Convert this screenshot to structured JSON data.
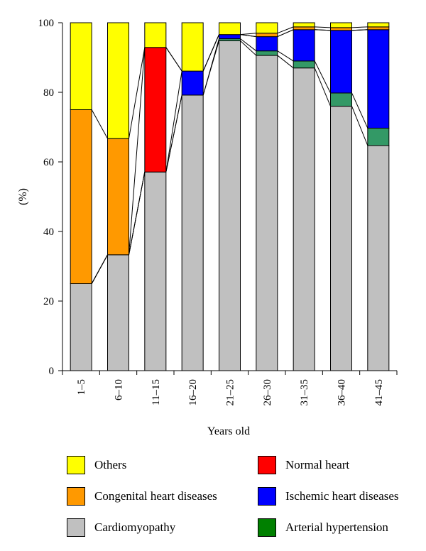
{
  "chart_data": {
    "type": "bar",
    "stacked": true,
    "categories": [
      "1–5",
      "6–10",
      "11–15",
      "16–20",
      "21–25",
      "26–30",
      "31–35",
      "36–40",
      "41–45"
    ],
    "xlabel": "Years old",
    "ylabel": "(%)",
    "ylim": [
      0,
      100
    ],
    "yticks": [
      0,
      20,
      40,
      60,
      80,
      100
    ],
    "connector_lines": true,
    "series": [
      {
        "name": "Cardiomyopathy",
        "color": "#c0c0c0",
        "values": [
          25,
          33.3,
          57.1,
          79.2,
          94.8,
          90.6,
          87.0,
          76.0,
          64.7
        ]
      },
      {
        "name": "Arterial hypertension",
        "color": "#339966",
        "values": [
          0,
          0,
          0,
          0,
          0.6,
          1.3,
          2.0,
          3.8,
          5.0
        ]
      },
      {
        "name": "Ischemic heart diseases",
        "color": "#0000ff",
        "values": [
          0,
          0,
          0,
          6.9,
          1.2,
          4.1,
          9.0,
          18.0,
          28.3
        ]
      },
      {
        "name": "Normal heart",
        "color": "#ff0000",
        "values": [
          0,
          0,
          35.8,
          0,
          0,
          0,
          0,
          0,
          0
        ]
      },
      {
        "name": "Congenital heart diseases",
        "color": "#ff9900",
        "values": [
          50,
          33.4,
          0,
          0,
          0,
          1.0,
          0.8,
          0.8,
          0.8
        ]
      },
      {
        "name": "Others",
        "color": "#ffff00",
        "values": [
          25,
          33.3,
          7.1,
          13.9,
          3.4,
          3.0,
          1.2,
          1.4,
          1.2
        ]
      }
    ],
    "legend": {
      "position": "bottom",
      "items": [
        {
          "label": "Others",
          "color": "#ffff00"
        },
        {
          "label": "Normal heart",
          "color": "#ff0000"
        },
        {
          "label": "Congenital heart diseases",
          "color": "#ff9900"
        },
        {
          "label": "Ischemic heart diseases",
          "color": "#0000ff"
        },
        {
          "label": "Cardiomyopathy",
          "color": "#c0c0c0"
        },
        {
          "label": "Arterial hypertension",
          "color": "#008000"
        }
      ]
    }
  }
}
